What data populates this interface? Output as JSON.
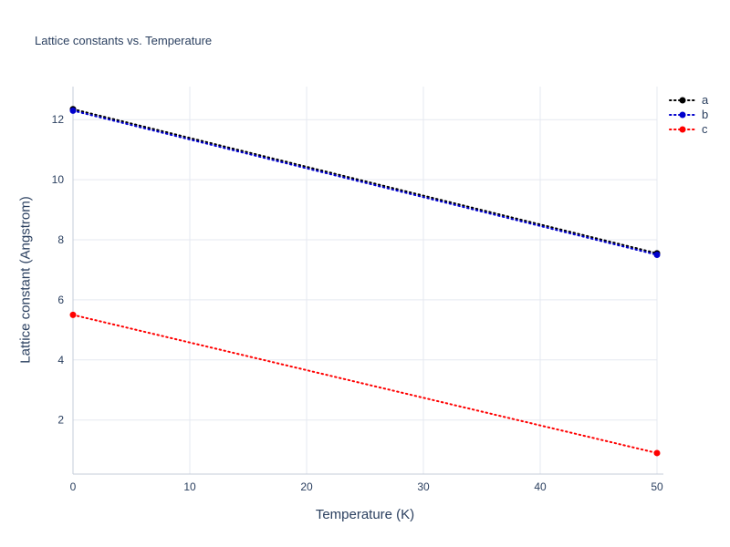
{
  "title": "Lattice constants vs. Temperature",
  "chart_data": {
    "type": "line",
    "title": "Lattice constants vs. Temperature",
    "xlabel": "Temperature (K)",
    "ylabel": "Lattice constant (Angstrom)",
    "x": [
      0,
      50
    ],
    "series": [
      {
        "name": "a",
        "color": "#000000",
        "values": [
          12.35,
          7.55
        ]
      },
      {
        "name": "b",
        "color": "#0000cd",
        "values": [
          12.3,
          7.5
        ]
      },
      {
        "name": "c",
        "color": "#ff0000",
        "values": [
          5.5,
          0.9
        ]
      }
    ],
    "line_style": "dotted",
    "markers": "endpoints",
    "xlim": [
      0,
      50
    ],
    "ylim": [
      0.2,
      13.1
    ],
    "x_ticks": [
      0,
      10,
      20,
      30,
      40,
      50
    ],
    "y_ticks": [
      2,
      4,
      6,
      8,
      10,
      12
    ],
    "grid": true,
    "legend_position": "top-right",
    "colors": {
      "text": "#2a3f5f",
      "grid": "#e5e9f0",
      "axis": "#c4ccd8",
      "background": "#ffffff"
    }
  }
}
